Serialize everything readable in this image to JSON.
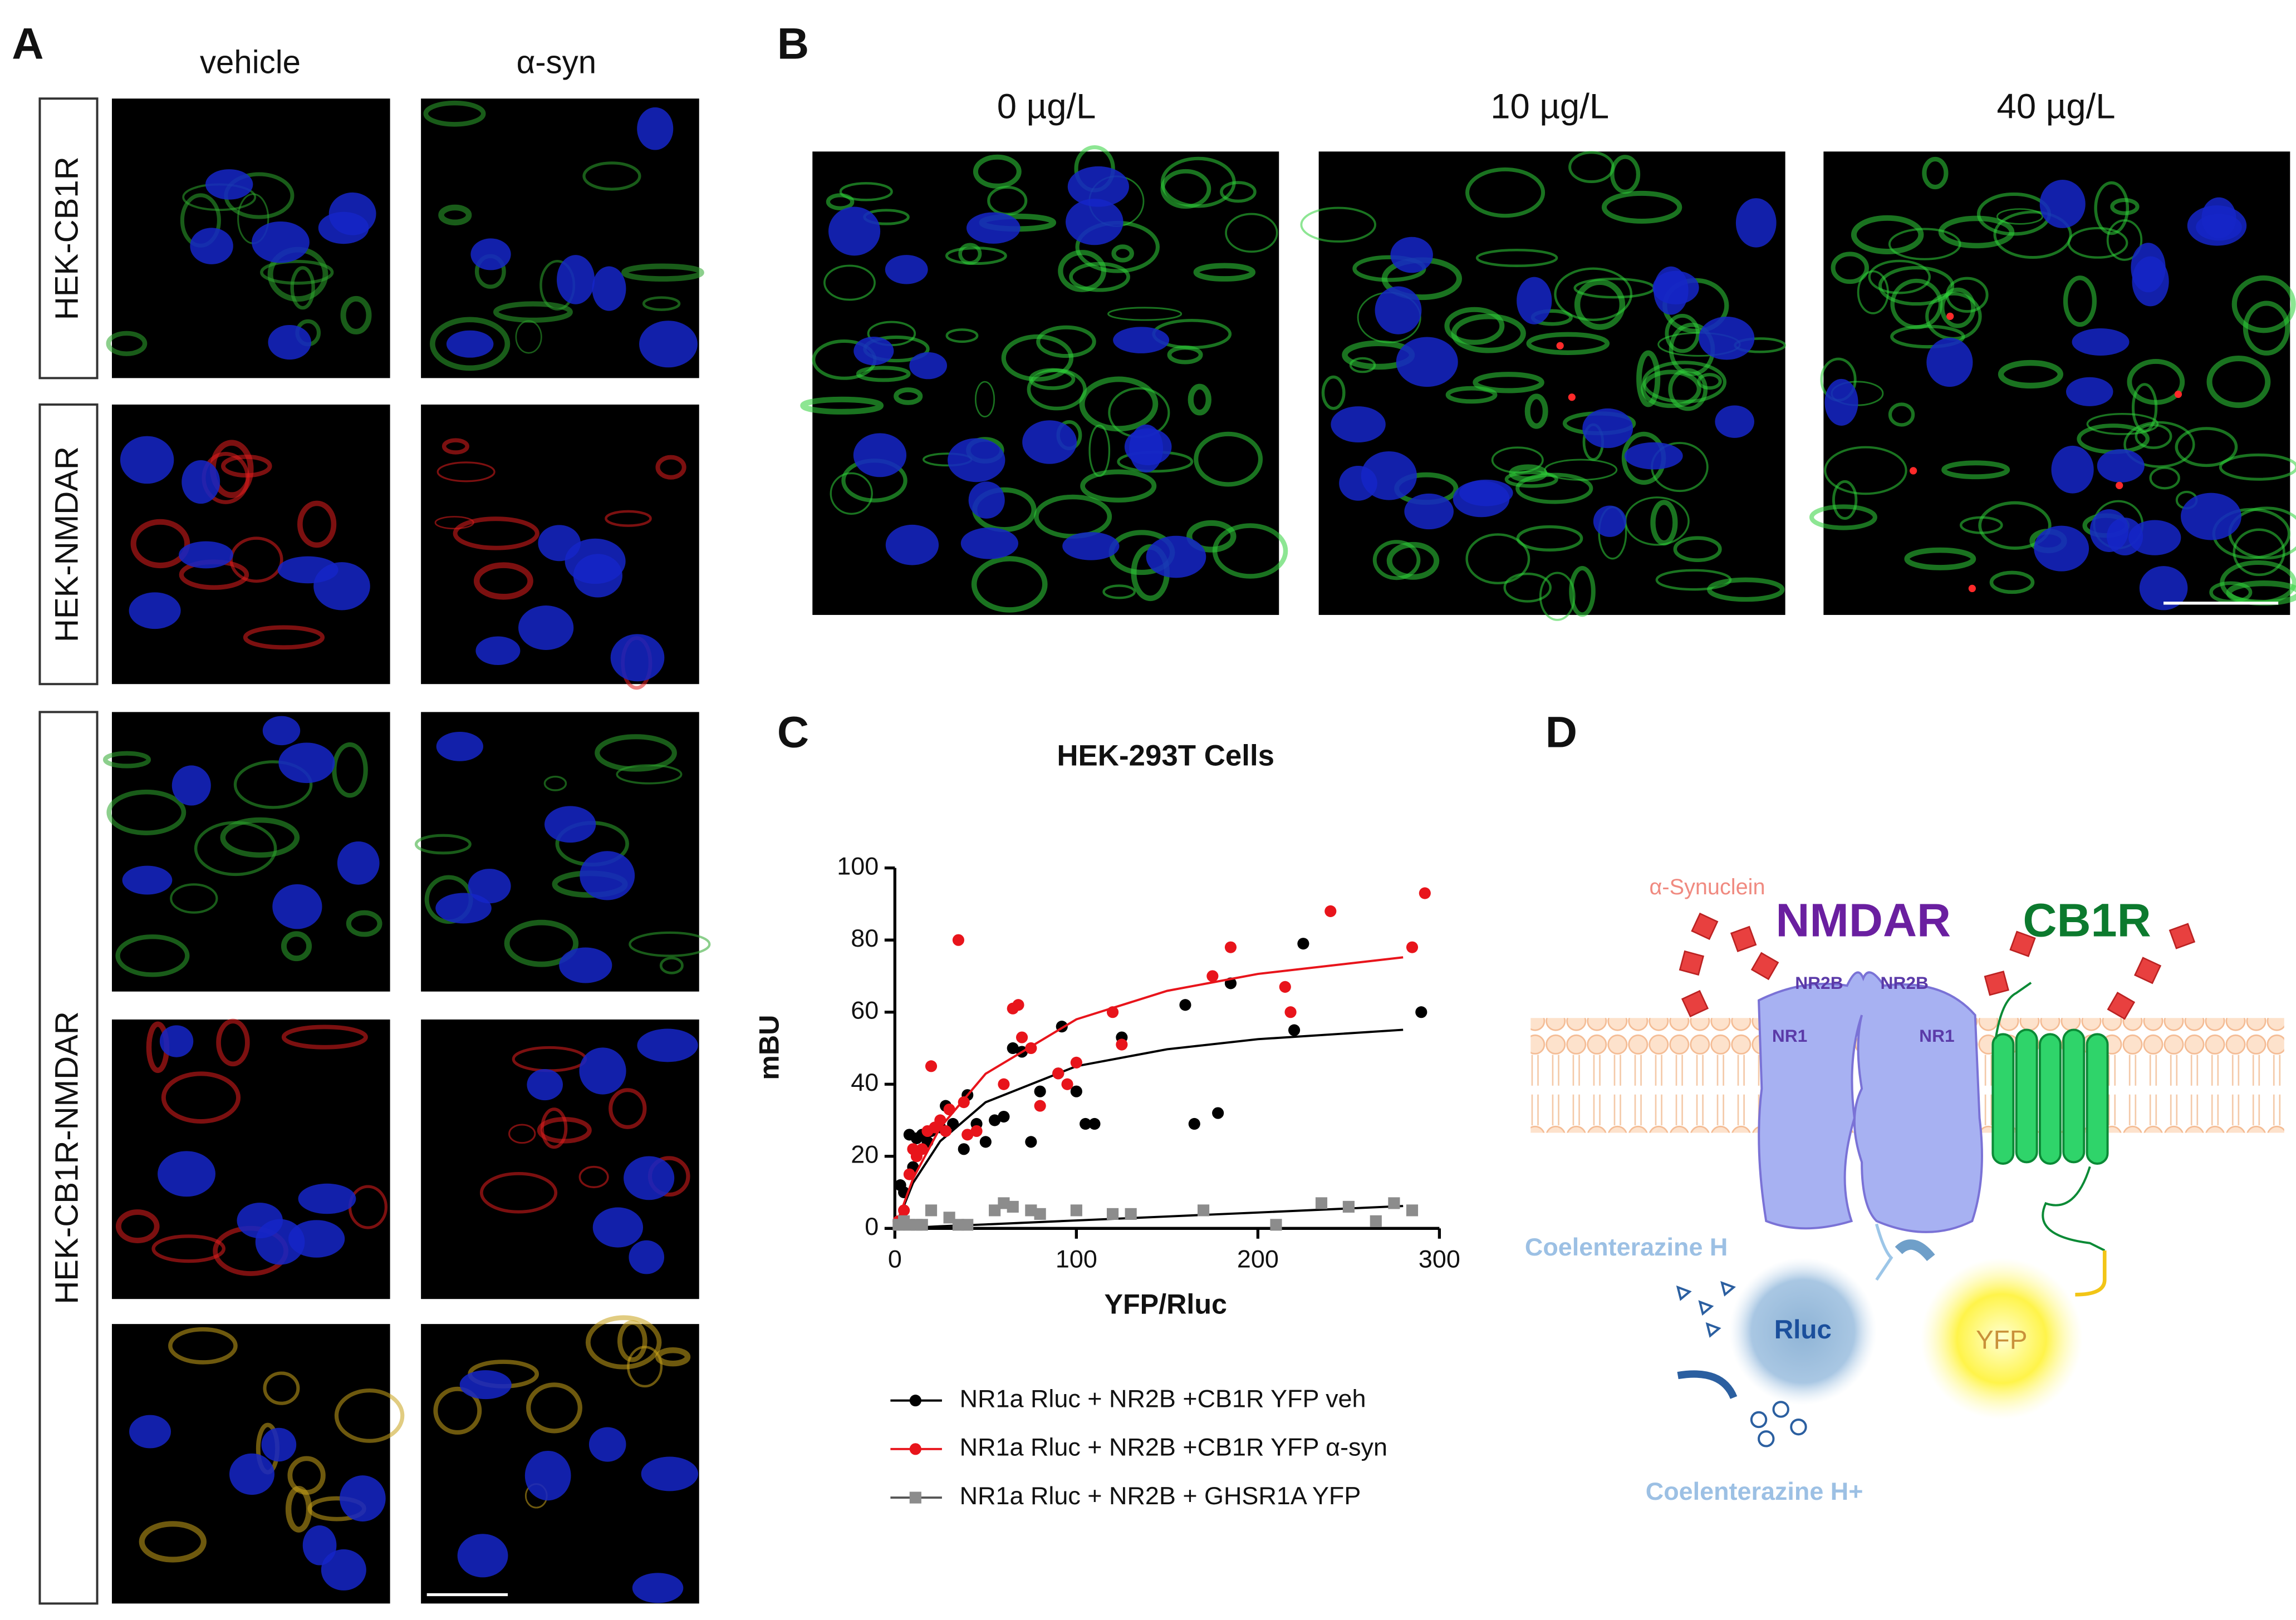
{
  "panel_a": {
    "label": "A",
    "columns": [
      "vehicle",
      "α-syn"
    ],
    "rows": [
      "HEK-CB1R",
      "HEK-NMDAR",
      "HEK-CB1R-NMDAR"
    ]
  },
  "panel_b": {
    "label": "B",
    "columns": [
      "0 µg/L",
      "10 µg/L",
      "40 µg/L"
    ]
  },
  "panel_c": {
    "label": "C"
  },
  "chart_data": {
    "type": "scatter",
    "title": "HEK-293T Cells",
    "x_label": "YFP/Rluc",
    "y_label": "mBU",
    "xlim": [
      0,
      300
    ],
    "xticks": [
      0,
      100,
      200,
      300
    ],
    "ylim": [
      0,
      100
    ],
    "yticks": [
      0,
      20,
      40,
      60,
      80,
      100
    ],
    "series": [
      {
        "name": "NR1a Rluc + NR2B +CB1R YFP veh",
        "color": "#000000",
        "marker": "circle",
        "fit_color": "#000000",
        "x": [
          3,
          5,
          8,
          10,
          12,
          15,
          18,
          20,
          25,
          28,
          32,
          38,
          40,
          45,
          50,
          55,
          60,
          65,
          70,
          75,
          80,
          92,
          90,
          100,
          105,
          110,
          125,
          160,
          165,
          178,
          185,
          220,
          225,
          290
        ],
        "values": [
          12,
          10,
          26,
          17,
          25,
          26,
          24,
          27,
          28,
          34,
          29,
          22,
          37,
          29,
          24,
          30,
          31,
          50,
          49,
          24,
          38,
          56,
          43,
          38,
          29,
          29,
          53,
          62,
          29,
          32,
          68,
          55,
          79,
          60
        ],
        "fit_x": [
          0,
          10,
          25,
          50,
          100,
          150,
          200,
          280
        ],
        "fit_values": [
          0,
          12.6,
          24.2,
          35,
          45,
          49.7,
          52.5,
          55.1
        ]
      },
      {
        "name": "NR1a Rluc + NR2B +CB1R YFP α-syn",
        "color": "#e8141b",
        "marker": "circle",
        "fit_color": "#e8141b",
        "x": [
          2,
          5,
          8,
          10,
          12,
          15,
          18,
          20,
          22,
          25,
          28,
          30,
          35,
          38,
          40,
          45,
          60,
          65,
          68,
          70,
          75,
          80,
          90,
          95,
          100,
          120,
          125,
          175,
          185,
          215,
          218,
          240,
          285,
          292
        ],
        "values": [
          2,
          5,
          15,
          22,
          20,
          22,
          27,
          45,
          28,
          30,
          27,
          33,
          80,
          35,
          26,
          27,
          40,
          61,
          62,
          53,
          50,
          34,
          43,
          40,
          46,
          60,
          51,
          70,
          78,
          67,
          60,
          88,
          78,
          93
        ],
        "fit_x": [
          0,
          10,
          25,
          50,
          100,
          150,
          200,
          280
        ],
        "fit_values": [
          0,
          13.8,
          28,
          42.9,
          58,
          65.9,
          70.6,
          75.2
        ]
      },
      {
        "name": "NR1a Rluc + NR2B + GHSR1A YFP",
        "color": "#8c8c8c",
        "marker": "square",
        "fit_color": "#000000",
        "x": [
          2,
          5,
          8,
          12,
          15,
          20,
          30,
          35,
          40,
          55,
          60,
          65,
          75,
          80,
          100,
          120,
          130,
          170,
          210,
          235,
          250,
          265,
          275,
          285
        ],
        "values": [
          1,
          2,
          1,
          1,
          1,
          5,
          3,
          1,
          1,
          5,
          7,
          6,
          5,
          4,
          5,
          4,
          4,
          5,
          1,
          7,
          6,
          2,
          7,
          5
        ],
        "fit_x": [
          0,
          10,
          25,
          50,
          100,
          150,
          200,
          280
        ],
        "fit_values": [
          0,
          0.2,
          0.6,
          1.1,
          2.2,
          3.3,
          4.4,
          6.2
        ]
      }
    ]
  },
  "panel_d": {
    "label": "D",
    "synuclein": "α-Synuclein",
    "nmdar": "NMDAR",
    "cb1r": "CB1R",
    "nr2b": "NR2B",
    "nr1": "NR1",
    "substrate": "Coelenterazine H",
    "rluc": "Rluc",
    "yfp": "YFP",
    "product": "Coelenterazine H+"
  }
}
